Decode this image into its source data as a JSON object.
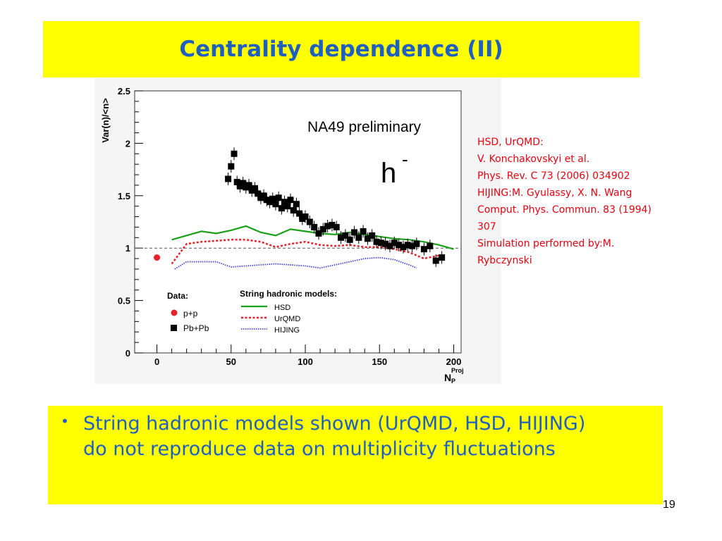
{
  "slide": {
    "title": "Centrality dependence (II)",
    "page_number": "19",
    "bullet": "String hadronic models shown (UrQMD, HSD, HIJING) do not reproduce data on multiplicity fluctuations",
    "references": [
      "HSD, UrQMD:",
      "V. Konchakovskyi et al.",
      "Phys. Rev. C 73 (2006) 034902",
      "HIJING:M. Gyulassy, X. N. Wang",
      "Comput. Phys. Commun.  83 (1994)",
      "307",
      "Simulation performed by:M.",
      "Rybczynski"
    ]
  },
  "chart_data": {
    "type": "scatter",
    "annotation": "NA49 preliminary",
    "particle_label": "h",
    "particle_sup": "-",
    "ylabel": "Var(n)/<n>",
    "xlabel": "N",
    "xlabel_sub": "P",
    "xlabel_sup": "Proj",
    "xlim": [
      -15,
      205
    ],
    "ylim": [
      0,
      2.5
    ],
    "xticks": [
      0,
      50,
      100,
      150,
      200
    ],
    "ytick_labels": [
      "0",
      "0.5",
      "1",
      "1.5",
      "2",
      "2.5"
    ],
    "reference_line": 1,
    "legend_data_title": "Data:",
    "legend_models_title": "String hadronic models:",
    "colors": {
      "pp": "#e8202a",
      "pbpb": "#000000",
      "hsd": "#1aa01a",
      "urqmd": "#e8202a",
      "hijing": "#4040e0"
    },
    "series": [
      {
        "name": "p+p",
        "kind": "data",
        "x": [
          0
        ],
        "y": [
          0.91
        ]
      },
      {
        "name": "Pb+Pb",
        "kind": "data",
        "x": [
          48,
          50,
          52,
          54,
          56,
          58,
          60,
          62,
          64,
          66,
          68,
          70,
          72,
          74,
          76,
          78,
          80,
          82,
          84,
          86,
          88,
          90,
          92,
          94,
          96,
          98,
          100,
          103,
          106,
          109,
          112,
          115,
          118,
          121,
          124,
          127,
          130,
          133,
          136,
          139,
          142,
          145,
          148,
          151,
          154,
          157,
          160,
          163,
          166,
          169,
          172,
          175,
          180,
          184,
          188,
          192
        ],
        "y": [
          1.66,
          1.78,
          1.9,
          1.63,
          1.59,
          1.62,
          1.58,
          1.6,
          1.55,
          1.57,
          1.52,
          1.48,
          1.5,
          1.46,
          1.44,
          1.47,
          1.42,
          1.48,
          1.38,
          1.44,
          1.4,
          1.46,
          1.36,
          1.42,
          1.33,
          1.28,
          1.3,
          1.25,
          1.2,
          1.14,
          1.18,
          1.21,
          1.22,
          1.2,
          1.1,
          1.12,
          1.08,
          1.15,
          1.1,
          1.16,
          1.09,
          1.12,
          1.06,
          1.05,
          1.04,
          1.02,
          1.05,
          1.03,
          1.01,
          1.03,
          1.02,
          1.04,
          0.99,
          1.02,
          0.88,
          0.91
        ]
      },
      {
        "name": "HSD",
        "kind": "model",
        "style": "solid",
        "x": [
          10,
          20,
          30,
          40,
          50,
          60,
          70,
          80,
          90,
          100,
          110,
          120,
          130,
          140,
          150,
          160,
          170,
          180,
          190,
          200
        ],
        "y": [
          1.08,
          1.12,
          1.16,
          1.14,
          1.17,
          1.21,
          1.15,
          1.12,
          1.18,
          1.16,
          1.14,
          1.13,
          1.15,
          1.13,
          1.11,
          1.09,
          1.08,
          1.06,
          1.03,
          0.99
        ]
      },
      {
        "name": "UrQMD",
        "kind": "model",
        "style": "dashed",
        "x": [
          10,
          20,
          30,
          40,
          50,
          60,
          70,
          80,
          90,
          100,
          110,
          120,
          130,
          140,
          150,
          160,
          170,
          180,
          190
        ],
        "y": [
          0.85,
          1.04,
          1.06,
          1.07,
          1.08,
          1.08,
          1.06,
          1.01,
          1.04,
          1.06,
          1.03,
          1.02,
          1.03,
          1.01,
          1.01,
          0.99,
          0.96,
          0.9,
          0.93
        ]
      },
      {
        "name": "HIJING",
        "kind": "model",
        "style": "dotted",
        "x": [
          12,
          20,
          30,
          40,
          50,
          60,
          70,
          80,
          90,
          100,
          110,
          120,
          130,
          140,
          150,
          160,
          170,
          175
        ],
        "y": [
          0.8,
          0.87,
          0.87,
          0.87,
          0.82,
          0.83,
          0.84,
          0.85,
          0.84,
          0.83,
          0.81,
          0.84,
          0.87,
          0.9,
          0.91,
          0.89,
          0.84,
          0.81
        ]
      }
    ]
  }
}
